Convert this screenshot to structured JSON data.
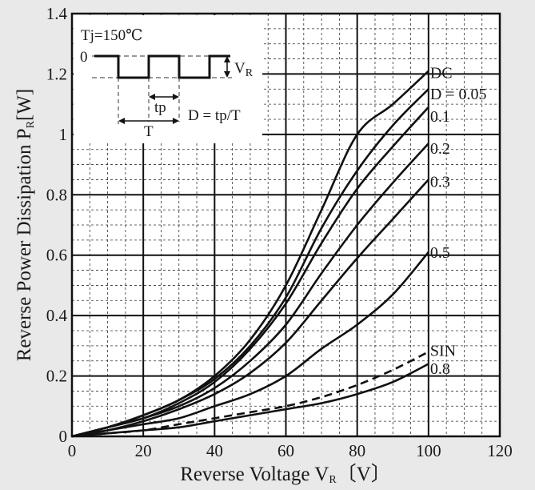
{
  "chart_data": {
    "type": "line",
    "title": "",
    "xlabel": {
      "main": "Reverse Voltage  V",
      "sub": "R",
      "unit": "〔V〕"
    },
    "ylabel": {
      "main": "Reverse Power Dissipation  P",
      "sub": "R",
      "unit": "[W]"
    },
    "xlim": [
      0,
      120
    ],
    "ylim": [
      0,
      1.4
    ],
    "x_ticks": [
      "0",
      "20",
      "40",
      "60",
      "80",
      "100",
      "120"
    ],
    "y_ticks": [
      "0",
      "0.2",
      "0.4",
      "0.6",
      "0.8",
      "1",
      "1.2",
      "1.4"
    ],
    "grid": true,
    "x": [
      0,
      10,
      20,
      30,
      40,
      50,
      60,
      70,
      80,
      90,
      100
    ],
    "series": [
      {
        "name": "DC",
        "dashed": false,
        "values": [
          0,
          0.03,
          0.07,
          0.12,
          0.2,
          0.32,
          0.5,
          0.75,
          1.0,
          1.1,
          1.21
        ]
      },
      {
        "name": "D = 0.05",
        "dashed": false,
        "values": [
          0,
          0.03,
          0.07,
          0.12,
          0.19,
          0.3,
          0.46,
          0.69,
          0.88,
          1.03,
          1.15
        ]
      },
      {
        "name": "0.1",
        "dashed": false,
        "values": [
          0,
          0.03,
          0.06,
          0.11,
          0.18,
          0.29,
          0.44,
          0.64,
          0.82,
          0.96,
          1.09
        ]
      },
      {
        "name": "0.2",
        "dashed": false,
        "values": [
          0,
          0.03,
          0.06,
          0.1,
          0.16,
          0.25,
          0.37,
          0.54,
          0.7,
          0.84,
          0.97
        ]
      },
      {
        "name": "0.3",
        "dashed": false,
        "values": [
          0,
          0.02,
          0.05,
          0.09,
          0.14,
          0.21,
          0.31,
          0.45,
          0.59,
          0.72,
          0.85
        ]
      },
      {
        "name": "0.5",
        "dashed": false,
        "values": [
          0,
          0.02,
          0.04,
          0.06,
          0.1,
          0.14,
          0.2,
          0.29,
          0.37,
          0.47,
          0.61
        ]
      },
      {
        "name": "SIN",
        "dashed": true,
        "values": [
          0,
          0.01,
          0.02,
          0.04,
          0.06,
          0.08,
          0.1,
          0.13,
          0.17,
          0.22,
          0.28
        ]
      },
      {
        "name": "0.8",
        "dashed": false,
        "values": [
          0,
          0.01,
          0.02,
          0.03,
          0.05,
          0.07,
          0.09,
          0.11,
          0.14,
          0.18,
          0.24
        ]
      }
    ],
    "inset": {
      "tj": "Tj=150℃",
      "zero": "0",
      "vr": "V",
      "vr_sub": "R",
      "tp": "tp",
      "t": "T",
      "d": "D = tp/T"
    }
  }
}
